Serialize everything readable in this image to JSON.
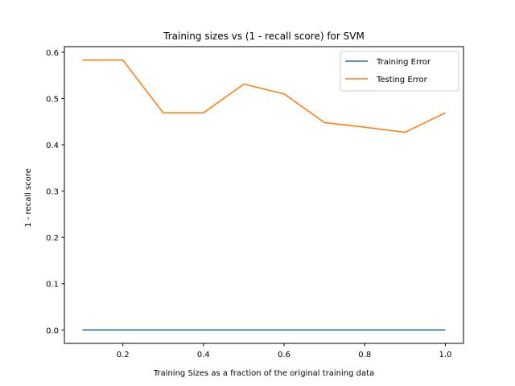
{
  "chart_data": {
    "type": "line",
    "title": "Training sizes vs (1 - recall score) for SVM",
    "xlabel": "Training Sizes as a fraction of the original training data",
    "ylabel": "1 - recall score",
    "xlim": [
      0.055,
      1.045
    ],
    "ylim": [
      -0.029,
      0.612
    ],
    "xticks": [
      0.2,
      0.4,
      0.6,
      0.8,
      1.0
    ],
    "xtick_labels": [
      "0.2",
      "0.4",
      "0.6",
      "0.8",
      "1.0"
    ],
    "yticks": [
      0.0,
      0.1,
      0.2,
      0.3,
      0.4,
      0.5,
      0.6
    ],
    "ytick_labels": [
      "0.0",
      "0.1",
      "0.2",
      "0.3",
      "0.4",
      "0.5",
      "0.6"
    ],
    "grid": false,
    "legend_position": "top-right",
    "x": [
      0.1,
      0.2,
      0.3,
      0.4,
      0.5,
      0.6,
      0.7,
      0.8,
      0.9,
      1.0
    ],
    "series": [
      {
        "name": "Training Error",
        "color": "#1f77b4",
        "values": [
          0,
          0,
          0,
          0,
          0,
          0,
          0,
          0,
          0,
          0
        ]
      },
      {
        "name": "Testing Error",
        "color": "#ff7f0e",
        "values": [
          0.583,
          0.583,
          0.469,
          0.469,
          0.531,
          0.51,
          0.448,
          0.438,
          0.427,
          0.469
        ]
      }
    ]
  }
}
